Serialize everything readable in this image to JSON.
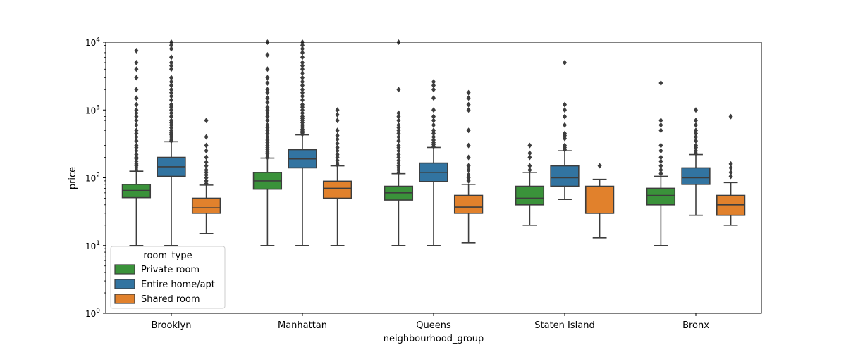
{
  "chart_data": {
    "type": "box",
    "xlabel": "neighbourhood_group",
    "ylabel": "price",
    "yscale": "log",
    "ylim": [
      1,
      10000
    ],
    "y_ticks": [
      {
        "value": 1,
        "base": "10",
        "exp": "0"
      },
      {
        "value": 10,
        "base": "10",
        "exp": "1"
      },
      {
        "value": 100,
        "base": "10",
        "exp": "2"
      },
      {
        "value": 1000,
        "base": "10",
        "exp": "3"
      },
      {
        "value": 10000,
        "base": "10",
        "exp": "4"
      }
    ],
    "categories": [
      "Brooklyn",
      "Manhattan",
      "Queens",
      "Staten Island",
      "Bronx"
    ],
    "legend": {
      "title": "room_type",
      "position": "lower-left",
      "entries": [
        "Private room",
        "Entire home/apt",
        "Shared room"
      ]
    },
    "series": [
      {
        "name": "Private room",
        "color": "#3a923a",
        "boxes": [
          {
            "whislo": 10,
            "q1": 51,
            "med": 65,
            "q3": 80,
            "whishi": 125,
            "fliers": [
              130,
              140,
              150,
              160,
              175,
              190,
              200,
              220,
              250,
              280,
              300,
              350,
              400,
              450,
              500,
              600,
              700,
              800,
              900,
              1000,
              1200,
              1500,
              2000,
              3000,
              4000,
              5000,
              7500
            ]
          },
          {
            "whislo": 10,
            "q1": 68,
            "med": 90,
            "q3": 120,
            "whishi": 195,
            "fliers": [
              200,
              210,
              225,
              240,
              260,
              280,
              300,
              330,
              360,
              400,
              450,
              500,
              550,
              600,
              700,
              800,
              900,
              1000,
              1100,
              1300,
              1500,
              1800,
              2000,
              2500,
              3000,
              4000,
              6500,
              10000
            ]
          },
          {
            "whislo": 10,
            "q1": 47,
            "med": 60,
            "q3": 75,
            "whishi": 115,
            "fliers": [
              120,
              130,
              140,
              150,
              165,
              180,
              200,
              220,
              250,
              280,
              300,
              350,
              400,
              450,
              500,
              550,
              600,
              700,
              800,
              900,
              2000,
              10000
            ]
          },
          {
            "whislo": 20,
            "q1": 40,
            "med": 50,
            "q3": 75,
            "whishi": 120,
            "fliers": [
              130,
              150,
              200,
              230,
              300
            ]
          },
          {
            "whislo": 10,
            "q1": 40,
            "med": 55,
            "q3": 70,
            "whishi": 105,
            "fliers": [
              115,
              130,
              150,
              175,
              200,
              250,
              300,
              500,
              600,
              700,
              2500
            ]
          }
        ]
      },
      {
        "name": "Entire home/apt",
        "color": "#3274a1",
        "boxes": [
          {
            "whislo": 10,
            "q1": 105,
            "med": 145,
            "q3": 200,
            "whishi": 340,
            "fliers": [
              350,
              370,
              400,
              430,
              460,
              500,
              550,
              600,
              650,
              700,
              800,
              900,
              1000,
              1100,
              1200,
              1400,
              1600,
              1800,
              2000,
              2300,
              2600,
              3000,
              4000,
              4500,
              5000,
              6000,
              8000,
              9000,
              10000
            ]
          },
          {
            "whislo": 10,
            "q1": 140,
            "med": 190,
            "q3": 260,
            "whishi": 430,
            "fliers": [
              440,
              460,
              490,
              520,
              560,
              600,
              650,
              700,
              750,
              800,
              900,
              1000,
              1100,
              1200,
              1400,
              1600,
              1800,
              2000,
              2300,
              2600,
              3000,
              3500,
              4000,
              4500,
              5000,
              6000,
              7000,
              8000,
              9000,
              10000
            ]
          },
          {
            "whislo": 10,
            "q1": 88,
            "med": 120,
            "q3": 165,
            "whishi": 280,
            "fliers": [
              290,
              310,
              330,
              360,
              400,
              450,
              500,
              600,
              700,
              800,
              1000,
              1500,
              2000,
              2300,
              2600
            ]
          },
          {
            "whislo": 48,
            "q1": 75,
            "med": 100,
            "q3": 150,
            "whishi": 250,
            "fliers": [
              260,
              280,
              300,
              380,
              420,
              450,
              600,
              800,
              1000,
              1200,
              5000
            ]
          },
          {
            "whislo": 28,
            "q1": 80,
            "med": 100,
            "q3": 140,
            "whishi": 220,
            "fliers": [
              230,
              250,
              280,
              300,
              350,
              400,
              450,
              500,
              600,
              700,
              1000
            ]
          }
        ]
      },
      {
        "name": "Shared room",
        "color": "#e1812c",
        "boxes": [
          {
            "whislo": 15,
            "q1": 30,
            "med": 36,
            "q3": 50,
            "whishi": 78,
            "fliers": [
              82,
              90,
              100,
              110,
              120,
              130,
              150,
              170,
              200,
              250,
              300,
              400,
              700
            ]
          },
          {
            "whislo": 10,
            "q1": 50,
            "med": 70,
            "q3": 89,
            "whishi": 150,
            "fliers": [
              155,
              165,
              180,
              200,
              220,
              250,
              280,
              320,
              370,
              420,
              500,
              700,
              850,
              1000
            ]
          },
          {
            "whislo": 11,
            "q1": 30,
            "med": 37,
            "q3": 55,
            "whishi": 80,
            "fliers": [
              90,
              100,
              110,
              130,
              150,
              200,
              300,
              500,
              1000,
              1200,
              1500,
              1800
            ]
          },
          {
            "whislo": 13,
            "q1": 30,
            "med": 30,
            "q3": 75,
            "whishi": 95,
            "fliers": [
              150
            ]
          },
          {
            "whislo": 20,
            "q1": 28,
            "med": 40,
            "q3": 55,
            "whishi": 85,
            "fliers": [
              105,
              120,
              140,
              160,
              800
            ]
          }
        ]
      }
    ]
  }
}
